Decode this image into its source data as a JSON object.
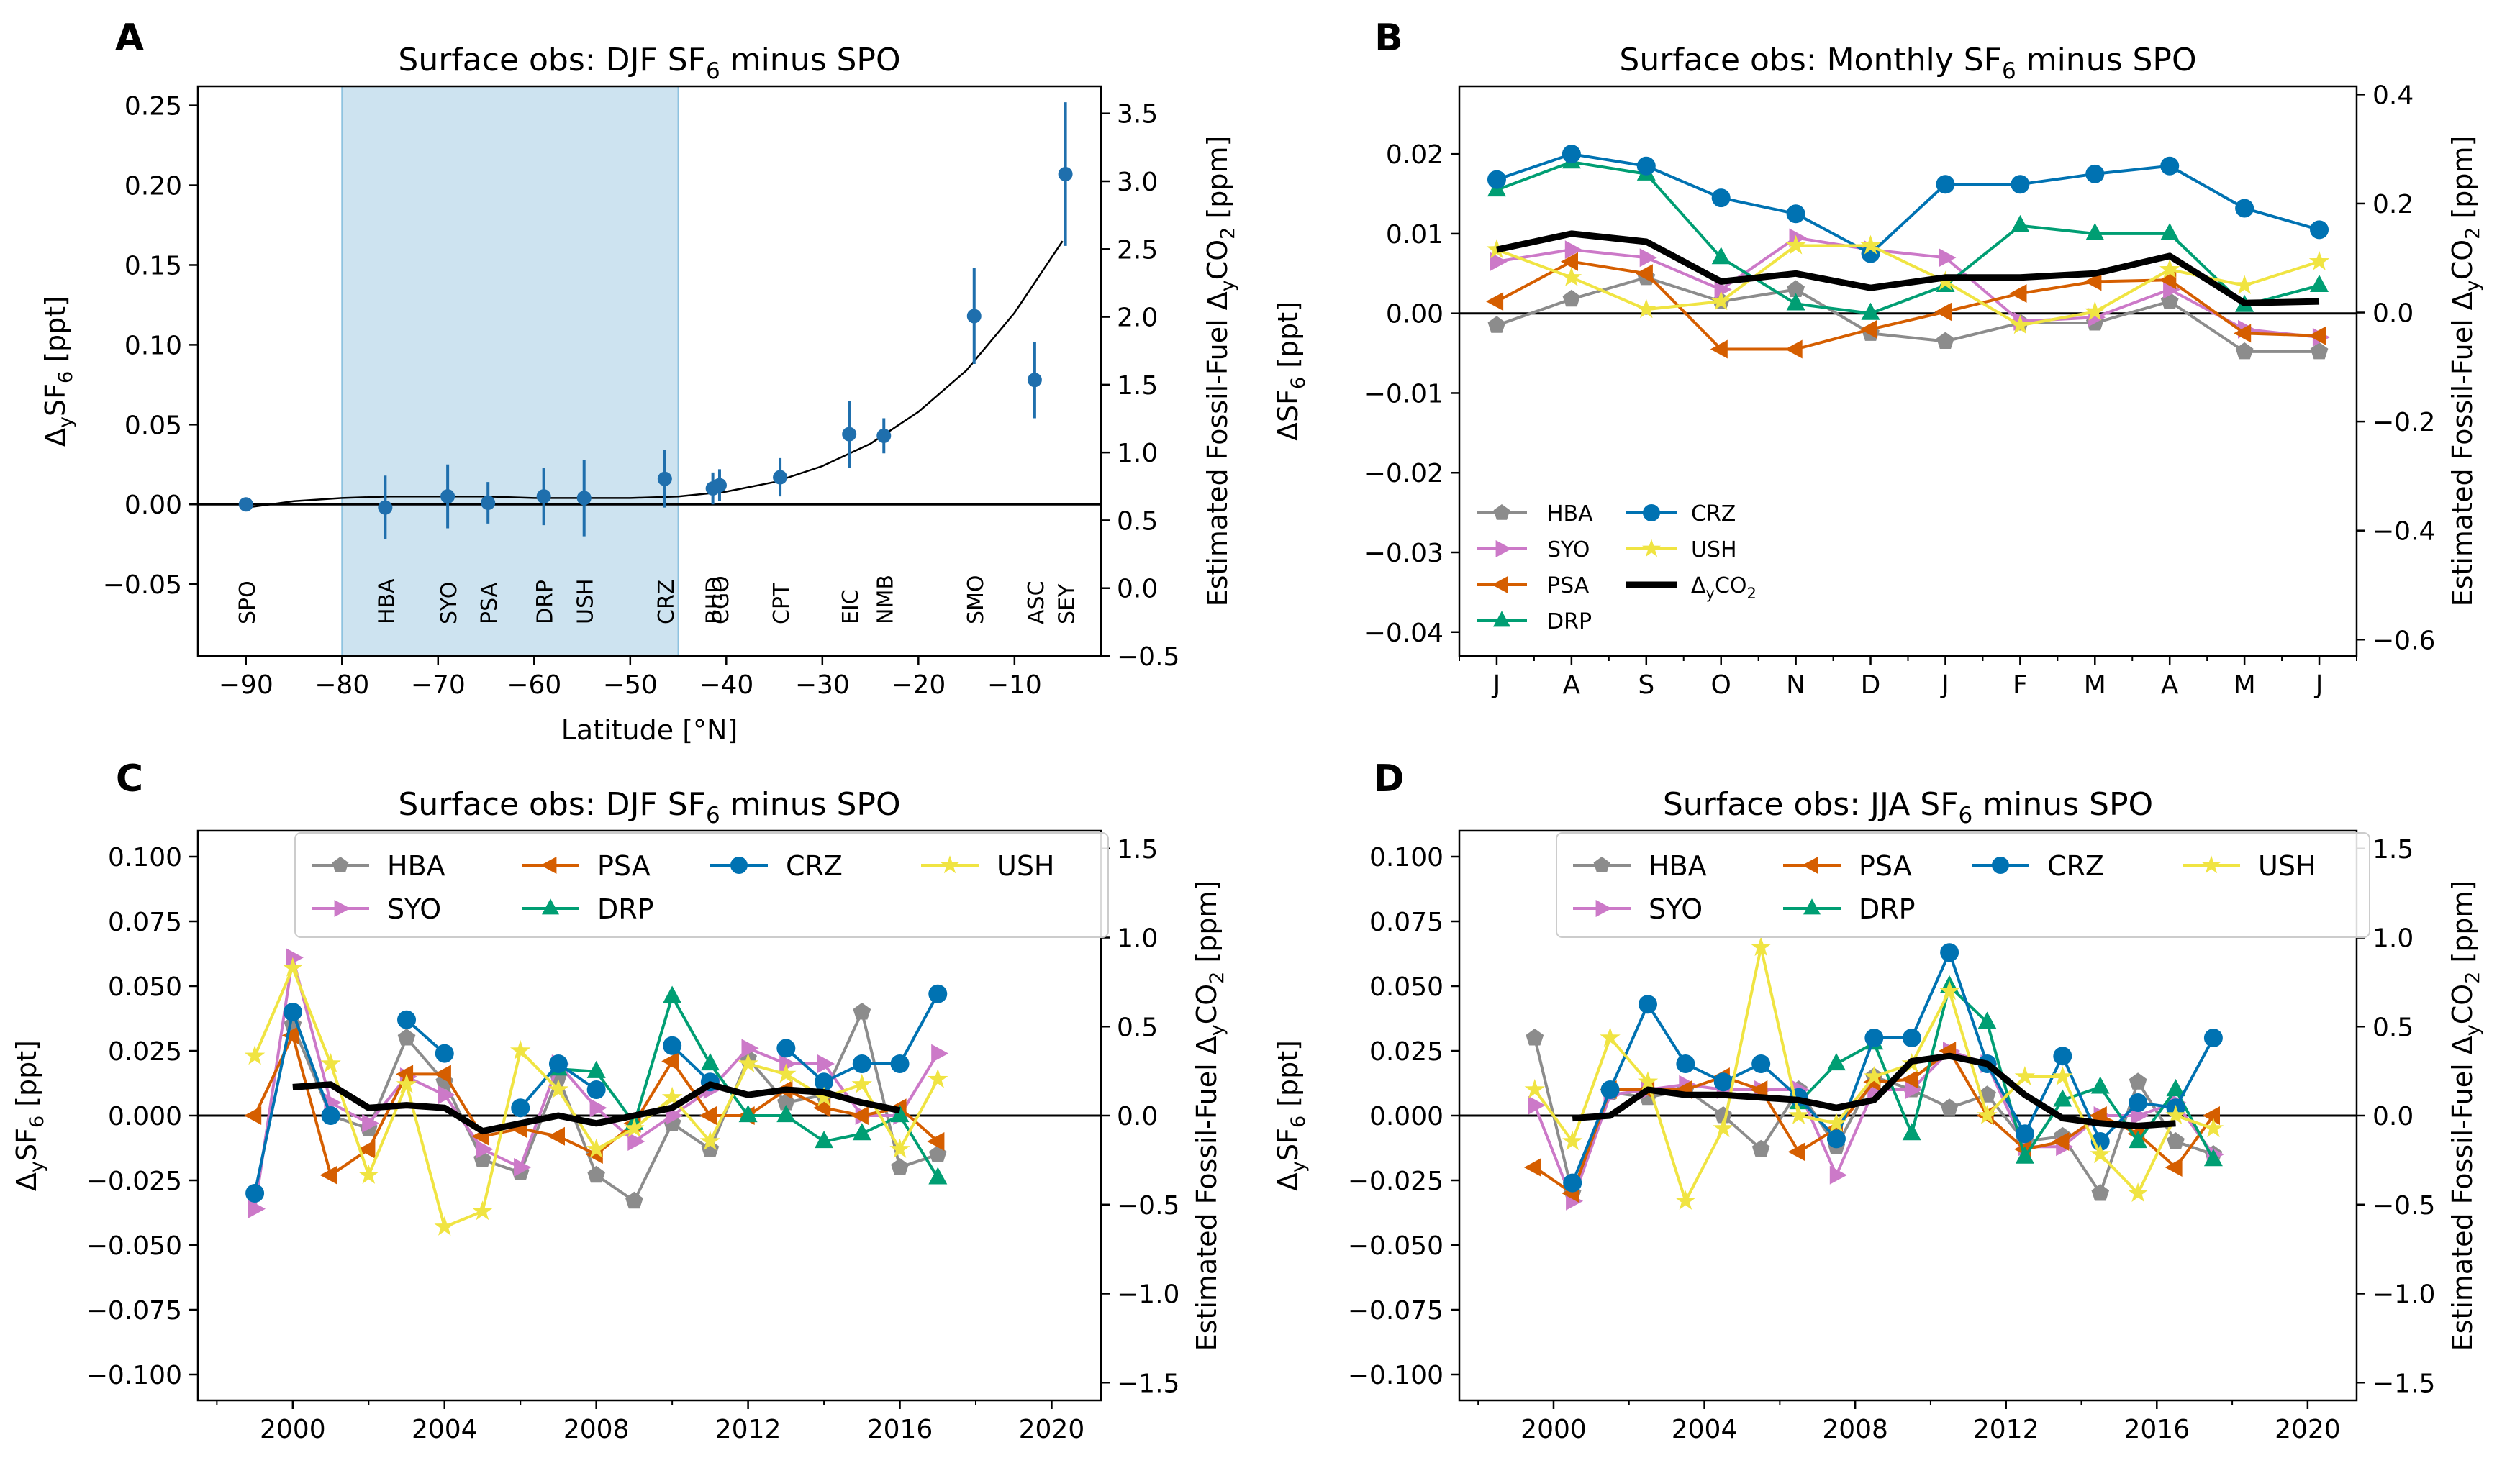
{
  "chart_data": [
    {
      "panel": "A",
      "type": "scatter",
      "title_parts": [
        "Surface obs: DJF SF",
        "6",
        " minus SPO"
      ],
      "xlabel": "Latitude [°N]",
      "ylabel_parts": [
        "Δ",
        "y",
        "SF",
        "6",
        " [ppt]"
      ],
      "y2label_parts": [
        "Estimated Fossil-Fuel Δ",
        "y",
        "CO",
        "2",
        " [ppm]"
      ],
      "xlim": [
        -95,
        -1
      ],
      "ylim": [
        -0.095,
        0.262
      ],
      "y2lim": [
        -0.5,
        3.7
      ],
      "xticks": [
        -90,
        -80,
        -70,
        -60,
        -50,
        -40,
        -30,
        -20,
        -10
      ],
      "yticks": [
        -0.05,
        0.0,
        0.05,
        0.1,
        0.15,
        0.2,
        0.25
      ],
      "ytick_labels": [
        "−0.05",
        "0.00",
        "0.05",
        "0.10",
        "0.15",
        "0.20",
        "0.25"
      ],
      "y2ticks": [
        -0.5,
        0.0,
        0.5,
        1.0,
        1.5,
        2.0,
        2.5,
        3.0,
        3.5
      ],
      "y2tick_labels": [
        "−0.5",
        "0.0",
        "0.5",
        "1.0",
        "1.5",
        "2.0",
        "2.5",
        "3.0",
        "3.5"
      ],
      "shaded_region": {
        "x": [
          -80,
          -45
        ],
        "color": "#cde3f0"
      },
      "color": "#1f6fad",
      "points": [
        {
          "station": "SPO",
          "lat": -90.0,
          "y": 0.0,
          "err": 0.0
        },
        {
          "station": "HBA",
          "lat": -75.5,
          "y": -0.002,
          "err": 0.02
        },
        {
          "station": "SYO",
          "lat": -69.0,
          "y": 0.005,
          "err": 0.02
        },
        {
          "station": "PSA",
          "lat": -64.8,
          "y": 0.001,
          "err": 0.013
        },
        {
          "station": "DRP",
          "lat": -59.0,
          "y": 0.005,
          "err": 0.018
        },
        {
          "station": "USH",
          "lat": -54.8,
          "y": 0.004,
          "err": 0.024
        },
        {
          "station": "CRZ",
          "lat": -46.4,
          "y": 0.016,
          "err": 0.018
        },
        {
          "station": "BHD",
          "lat": -41.4,
          "y": 0.01,
          "err": 0.01
        },
        {
          "station": "CGO",
          "lat": -40.7,
          "y": 0.012,
          "err": 0.01
        },
        {
          "station": "CPT",
          "lat": -34.4,
          "y": 0.017,
          "err": 0.012
        },
        {
          "station": "EIC",
          "lat": -27.2,
          "y": 0.044,
          "err": 0.021
        },
        {
          "station": "NMB",
          "lat": -23.6,
          "y": 0.043,
          "err": 0.011
        },
        {
          "station": "SMO",
          "lat": -14.2,
          "y": 0.118,
          "err": 0.03
        },
        {
          "station": "ASC",
          "lat": -7.9,
          "y": 0.078,
          "err": 0.024
        },
        {
          "station": "SEY",
          "lat": -4.7,
          "y": 0.207,
          "err": 0.045
        }
      ],
      "fit_curve": {
        "x": [
          -90,
          -85,
          -80,
          -75,
          -70,
          -65,
          -60,
          -55,
          -50,
          -45,
          -40,
          -35,
          -30,
          -25,
          -20,
          -15,
          -10,
          -5
        ],
        "y": [
          -0.002,
          0.002,
          0.004,
          0.005,
          0.005,
          0.005,
          0.004,
          0.004,
          0.004,
          0.005,
          0.008,
          0.014,
          0.024,
          0.038,
          0.058,
          0.084,
          0.12,
          0.165
        ]
      },
      "station_labels": [
        "SPO",
        "HBA",
        "SYO",
        "PSA",
        "DRP",
        "USH",
        "CRZ",
        "BHD",
        "CGO",
        "CPT",
        "EIC",
        "NMB",
        "SMO",
        "ASC",
        "SEY"
      ]
    },
    {
      "panel": "B",
      "type": "line",
      "title_parts": [
        "Surface obs: Monthly SF",
        "6",
        " minus SPO"
      ],
      "ylabel_parts": [
        "ΔSF",
        "6",
        " [ppt]"
      ],
      "y2label_parts": [
        "Estimated Fossil-Fuel Δ",
        "y",
        "CO",
        "2",
        " [ppm]"
      ],
      "categories": [
        "J",
        "A",
        "S",
        "O",
        "N",
        "D",
        "J",
        "F",
        "M",
        "A",
        "M",
        "J"
      ],
      "ylim": [
        -0.043,
        0.0285
      ],
      "y2lim": [
        -0.63,
        0.415
      ],
      "yticks": [
        -0.04,
        -0.03,
        -0.02,
        -0.01,
        0.0,
        0.01,
        0.02
      ],
      "ytick_labels": [
        "−0.04",
        "−0.03",
        "−0.02",
        "−0.01",
        "0.00",
        "0.01",
        "0.02"
      ],
      "y2ticks": [
        -0.6,
        -0.4,
        -0.2,
        0.0,
        0.2,
        0.4
      ],
      "y2tick_labels": [
        "−0.6",
        "−0.4",
        "−0.2",
        "0.0",
        "0.2",
        "0.4"
      ],
      "legend_position": "lower-left",
      "legend_labels": [
        "HBA",
        "SYO",
        "PSA",
        "DRP",
        "CRZ",
        "USH"
      ],
      "legend_co2_parts": [
        "Δ",
        "y",
        "CO",
        "2"
      ],
      "series": [
        {
          "name": "HBA",
          "color": "#8c8c8c",
          "marker": "pentagon",
          "values": [
            -0.0015,
            0.0018,
            0.0045,
            0.0015,
            0.003,
            -0.0025,
            -0.0035,
            -0.0012,
            -0.0012,
            0.0015,
            -0.0048,
            -0.0048
          ]
        },
        {
          "name": "SYO",
          "color": "#cc79c8",
          "marker": "tri-right",
          "values": [
            0.0065,
            0.008,
            0.007,
            0.003,
            0.0095,
            0.008,
            0.007,
            -0.001,
            -0.0005,
            0.003,
            -0.002,
            -0.003
          ]
        },
        {
          "name": "PSA",
          "color": "#d55e00",
          "marker": "tri-left",
          "values": [
            0.0015,
            0.0065,
            0.005,
            -0.0045,
            -0.0045,
            -0.002,
            0.0002,
            0.0025,
            0.004,
            0.0042,
            -0.0025,
            -0.0028
          ]
        },
        {
          "name": "DRP",
          "color": "#009e73",
          "marker": "tri-up",
          "values": [
            0.0155,
            0.019,
            0.0175,
            0.007,
            0.0012,
            0.0,
            0.0035,
            0.011,
            0.01,
            0.01,
            0.001,
            0.0035
          ]
        },
        {
          "name": "CRZ",
          "color": "#0072b2",
          "marker": "circle",
          "values": [
            0.0168,
            0.02,
            0.0185,
            0.0145,
            0.0125,
            0.0075,
            0.0162,
            0.0162,
            0.0175,
            0.0185,
            0.0132,
            0.0105
          ]
        },
        {
          "name": "USH",
          "color": "#f0e442",
          "marker": "star",
          "values": [
            0.008,
            0.0045,
            0.0005,
            0.0015,
            0.0085,
            0.0085,
            0.004,
            -0.0015,
            0.0002,
            0.0055,
            0.0035,
            0.0065
          ]
        },
        {
          "name": "CO2",
          "color": "#000000",
          "marker": "none",
          "values": [
            0.008,
            0.01,
            0.009,
            0.004,
            0.005,
            0.0032,
            0.0045,
            0.0045,
            0.005,
            0.0072,
            0.0013,
            0.0015
          ]
        }
      ]
    },
    {
      "panel": "C",
      "type": "line",
      "title_parts": [
        "Surface obs: DJF SF",
        "6",
        " minus SPO"
      ],
      "ylabel_parts": [
        "Δ",
        "y",
        "SF",
        "6",
        " [ppt]"
      ],
      "y2label_parts": [
        "Estimated Fossil-Fuel Δ",
        "y",
        "CO",
        "2",
        " [ppm]"
      ],
      "xlim": [
        1997.5,
        2021.3
      ],
      "ylim": [
        -0.11,
        0.11
      ],
      "y2lim": [
        -1.6,
        1.6
      ],
      "xticks": [
        2000,
        2004,
        2008,
        2012,
        2016,
        2020
      ],
      "xminor": [
        1998,
        2002,
        2006,
        2010,
        2014,
        2018
      ],
      "yticks": [
        -0.1,
        -0.075,
        -0.05,
        -0.025,
        0.0,
        0.025,
        0.05,
        0.075,
        0.1
      ],
      "ytick_labels": [
        "−0.100",
        "−0.075",
        "−0.050",
        "−0.025",
        "0.000",
        "0.025",
        "0.050",
        "0.075",
        "0.100"
      ],
      "y2ticks": [
        -1.5,
        -1.0,
        -0.5,
        0.0,
        0.5,
        1.0,
        1.5
      ],
      "y2tick_labels": [
        "−1.5",
        "−1.0",
        "−0.5",
        "0.0",
        "0.5",
        "1.0",
        "1.5"
      ],
      "legend_position": "top",
      "legend_labels": [
        "HBA",
        "SYO",
        "PSA",
        "DRP",
        "CRZ",
        "USH"
      ],
      "x": [
        1999,
        2000,
        2001,
        2002,
        2003,
        2004,
        2005,
        2006,
        2007,
        2008,
        2009,
        2010,
        2011,
        2012,
        2013,
        2014,
        2015,
        2016,
        2017
      ],
      "series": [
        {
          "name": "HBA",
          "color": "#8c8c8c",
          "marker": "pentagon",
          "values": [
            null,
            0.035,
            0.0,
            -0.005,
            0.03,
            0.013,
            -0.017,
            -0.022,
            0.015,
            -0.023,
            -0.033,
            -0.003,
            -0.013,
            0.022,
            0.005,
            0.008,
            0.04,
            -0.02,
            -0.015
          ]
        },
        {
          "name": "SYO",
          "color": "#cc79c8",
          "marker": "tri-right",
          "values": [
            -0.036,
            0.061,
            0.005,
            -0.003,
            0.015,
            0.008,
            -0.013,
            -0.02,
            0.02,
            0.003,
            -0.01,
            0.0,
            0.01,
            0.026,
            0.02,
            0.02,
            0.0,
            0.0,
            0.024
          ]
        },
        {
          "name": "PSA",
          "color": "#d55e00",
          "marker": "tri-left",
          "values": [
            0.0,
            0.031,
            -0.023,
            -0.013,
            0.016,
            0.016,
            -0.008,
            -0.005,
            -0.008,
            -0.015,
            -0.003,
            0.021,
            0.0,
            0.0,
            0.01,
            0.003,
            0.0,
            0.003,
            -0.01
          ]
        },
        {
          "name": "DRP",
          "color": "#009e73",
          "marker": "tri-up",
          "values": [
            null,
            null,
            null,
            null,
            null,
            null,
            null,
            null,
            0.018,
            0.017,
            -0.003,
            0.046,
            0.02,
            0.0,
            0.0,
            -0.01,
            -0.007,
            0.0,
            -0.024
          ]
        },
        {
          "name": "CRZ",
          "color": "#0072b2",
          "marker": "circle",
          "values": [
            -0.03,
            0.04,
            0.0,
            null,
            0.037,
            0.024,
            null,
            0.003,
            0.02,
            0.01,
            null,
            0.027,
            0.013,
            null,
            0.026,
            0.013,
            0.02,
            0.02,
            0.047
          ]
        },
        {
          "name": "USH",
          "color": "#f0e442",
          "marker": "star",
          "values": [
            0.023,
            0.057,
            0.02,
            -0.023,
            0.012,
            -0.043,
            -0.037,
            0.025,
            0.01,
            -0.013,
            -0.005,
            0.007,
            -0.01,
            0.02,
            0.016,
            0.007,
            0.012,
            -0.013,
            0.014
          ]
        },
        {
          "name": "CO2",
          "color": "#000000",
          "marker": "none",
          "values": [
            null,
            0.011,
            0.012,
            0.003,
            0.004,
            0.003,
            -0.006,
            -0.003,
            0.0,
            -0.003,
            0.0,
            0.003,
            0.012,
            0.008,
            0.01,
            0.009,
            0.005,
            0.002,
            null
          ]
        }
      ]
    },
    {
      "panel": "D",
      "type": "line",
      "title_parts": [
        "Surface obs: JJA SF",
        "6",
        " minus SPO"
      ],
      "ylabel_parts": [
        "Δ",
        "y",
        "SF",
        "6",
        " [ppt]"
      ],
      "y2label_parts": [
        "Estimated Fossil-Fuel Δ",
        "y",
        "CO",
        "2",
        " [ppm]"
      ],
      "xlim": [
        1997.5,
        2021.3
      ],
      "ylim": [
        -0.11,
        0.11
      ],
      "y2lim": [
        -1.6,
        1.6
      ],
      "xticks": [
        2000,
        2004,
        2008,
        2012,
        2016,
        2020
      ],
      "xminor": [
        1998,
        2002,
        2006,
        2010,
        2014,
        2018
      ],
      "yticks": [
        -0.1,
        -0.075,
        -0.05,
        -0.025,
        0.0,
        0.025,
        0.05,
        0.075,
        0.1
      ],
      "ytick_labels": [
        "−0.100",
        "−0.075",
        "−0.050",
        "−0.025",
        "0.000",
        "0.025",
        "0.050",
        "0.075",
        "0.100"
      ],
      "y2ticks": [
        -1.5,
        -1.0,
        -0.5,
        0.0,
        0.5,
        1.0,
        1.5
      ],
      "y2tick_labels": [
        "−1.5",
        "−1.0",
        "−0.5",
        "0.0",
        "0.5",
        "1.0",
        "1.5"
      ],
      "legend_position": "top",
      "legend_labels": [
        "HBA",
        "SYO",
        "PSA",
        "DRP",
        "CRZ",
        "USH"
      ],
      "x": [
        1999.5,
        2000.5,
        2001.5,
        2002.5,
        2003.5,
        2004.5,
        2005.5,
        2006.5,
        2007.5,
        2008.5,
        2009.5,
        2010.5,
        2011.5,
        2012.5,
        2013.5,
        2014.5,
        2015.5,
        2016.5,
        2017.5
      ],
      "series": [
        {
          "name": "HBA",
          "color": "#8c8c8c",
          "marker": "pentagon",
          "values": [
            0.03,
            -0.03,
            0.009,
            0.007,
            0.01,
            0.0,
            -0.013,
            0.01,
            -0.012,
            0.015,
            0.01,
            0.003,
            0.008,
            -0.01,
            -0.008,
            -0.03,
            0.013,
            -0.01,
            -0.015
          ]
        },
        {
          "name": "SYO",
          "color": "#cc79c8",
          "marker": "tri-right",
          "values": [
            0.004,
            -0.033,
            0.008,
            0.01,
            0.012,
            0.01,
            0.01,
            0.01,
            -0.023,
            0.01,
            0.01,
            0.025,
            0.02,
            -0.012,
            -0.012,
            0.0,
            0.0,
            0.005,
            -0.015
          ]
        },
        {
          "name": "PSA",
          "color": "#d55e00",
          "marker": "tri-left",
          "values": [
            -0.02,
            -0.03,
            0.01,
            0.01,
            0.01,
            0.015,
            0.01,
            -0.014,
            -0.005,
            0.013,
            0.014,
            0.025,
            0.0,
            -0.013,
            -0.01,
            0.0,
            -0.007,
            -0.02,
            0.0
          ]
        },
        {
          "name": "DRP",
          "color": "#009e73",
          "marker": "tri-up",
          "values": [
            null,
            null,
            null,
            null,
            null,
            null,
            null,
            0.005,
            0.02,
            0.028,
            -0.007,
            0.05,
            0.036,
            -0.016,
            0.006,
            0.011,
            -0.01,
            0.01,
            -0.017
          ]
        },
        {
          "name": "CRZ",
          "color": "#0072b2",
          "marker": "circle",
          "values": [
            null,
            -0.026,
            0.01,
            0.043,
            0.02,
            0.013,
            0.02,
            0.007,
            -0.009,
            0.03,
            0.03,
            0.063,
            0.02,
            -0.007,
            0.023,
            -0.01,
            0.005,
            0.003,
            0.03
          ]
        },
        {
          "name": "USH",
          "color": "#f0e442",
          "marker": "star",
          "values": [
            0.01,
            -0.01,
            0.03,
            0.013,
            -0.033,
            -0.005,
            0.065,
            0.0,
            -0.003,
            0.015,
            0.02,
            0.048,
            0.0,
            0.015,
            0.015,
            -0.015,
            -0.03,
            0.0,
            -0.005
          ]
        },
        {
          "name": "CO2",
          "color": "#000000",
          "marker": "none",
          "values": [
            null,
            -0.001,
            0.0,
            0.01,
            0.008,
            0.008,
            0.007,
            0.006,
            0.003,
            0.006,
            0.021,
            0.023,
            0.02,
            0.008,
            -0.001,
            -0.003,
            -0.004,
            -0.003,
            null
          ]
        }
      ]
    }
  ]
}
